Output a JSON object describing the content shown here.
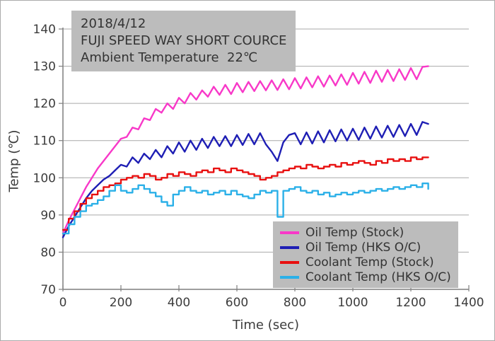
{
  "figure": {
    "background": "#FFFFFF",
    "border_color": "#ABABAB",
    "grid_color": "#A9A9A9",
    "axis_color": "#7F7F7F",
    "text_color": "#3C3C3C",
    "box_background": "#BCBCBC"
  },
  "annotation_box": {
    "lines": [
      "2018/4/12",
      "FUJI SPEED WAY SHORT COURCE",
      "Ambient Temperature  22℃"
    ]
  },
  "chart_data": {
    "type": "line",
    "xlabel": "Time (sec)",
    "ylabel": "Temp (℃)",
    "xlim": [
      0,
      1400
    ],
    "ylim": [
      70,
      140
    ],
    "x_ticks": [
      0,
      200,
      400,
      600,
      800,
      1000,
      1200,
      1400
    ],
    "y_ticks": [
      70,
      80,
      90,
      100,
      110,
      120,
      130,
      140
    ],
    "grid": "horizontal",
    "legend_position": "inside-bottom-right",
    "x_start": 0,
    "x_step": 20,
    "series": [
      {
        "name": "Oil Temp (Stock)",
        "color": "#F838C8",
        "style": "linear",
        "values": [
          85,
          88.5,
          91.5,
          94.5,
          97.5,
          100,
          102.5,
          104.5,
          106.5,
          108.5,
          110.5,
          111,
          113.5,
          113,
          116,
          115.5,
          118.5,
          117.5,
          120,
          118.5,
          121.5,
          120,
          122.8,
          121,
          123.5,
          121.8,
          124.5,
          122.3,
          125,
          122.5,
          125.5,
          123,
          125.8,
          123.3,
          126,
          123.5,
          126.2,
          123.6,
          126.5,
          123.8,
          126.8,
          124,
          127,
          124.3,
          127.3,
          124.5,
          127.5,
          124.8,
          127.8,
          125,
          128.2,
          125.3,
          128.5,
          125.5,
          128.8,
          125.8,
          129,
          126,
          129.2,
          126.3,
          129.5,
          126.5,
          129.8,
          130
        ]
      },
      {
        "name": "Oil Temp (HKS O/C)",
        "color": "#1E1EB4",
        "style": "linear",
        "values": [
          84,
          87,
          89.5,
          92,
          94.5,
          96.5,
          98,
          99.5,
          100.5,
          102,
          103.5,
          103,
          105.5,
          104,
          106.5,
          105,
          107.5,
          105.5,
          108.5,
          106.5,
          109.5,
          107,
          110,
          107.5,
          110.5,
          108,
          111,
          108.5,
          111.2,
          108.5,
          111.5,
          108.8,
          111.8,
          109,
          112,
          109,
          107,
          104.5,
          109.5,
          111.5,
          112,
          109,
          112.2,
          109.2,
          112.5,
          109.5,
          112.8,
          109.8,
          113,
          110,
          113.2,
          110.2,
          113.5,
          110.5,
          113.8,
          110.8,
          114,
          111,
          114.2,
          111.2,
          114.5,
          111.5,
          115,
          114.5
        ]
      },
      {
        "name": "Coolant Temp (Stock)",
        "color": "#E81010",
        "style": "step",
        "values": [
          86,
          89,
          91,
          93,
          94.5,
          95.5,
          96.5,
          97.5,
          98,
          98.5,
          99.5,
          100,
          100.5,
          100,
          101,
          100.5,
          99.5,
          100,
          101,
          100.5,
          101.5,
          101,
          100.5,
          101.5,
          102,
          101.5,
          102.5,
          102,
          101.5,
          102.5,
          102,
          101.5,
          101,
          100.5,
          99.5,
          100,
          100.5,
          101.5,
          102,
          102.5,
          103,
          102.5,
          103.5,
          103,
          102.5,
          103,
          103.5,
          103,
          104,
          103.5,
          104,
          104.5,
          104,
          103.5,
          104.5,
          104,
          105,
          104.5,
          105,
          104.5,
          105.5,
          105,
          105.5,
          105.5
        ]
      },
      {
        "name": "Coolant Temp (HKS O/C)",
        "color": "#2BB0E8",
        "style": "step",
        "values": [
          85,
          87.5,
          89.5,
          91,
          92.5,
          93,
          94,
          95,
          96.5,
          98,
          96.5,
          96,
          97,
          98,
          97,
          96,
          95,
          93.5,
          92.5,
          95.5,
          96.5,
          97.5,
          96.5,
          96,
          96.5,
          95.5,
          96,
          96.5,
          95.5,
          96.5,
          95.5,
          95,
          94.5,
          95.5,
          96.5,
          96,
          96.5,
          89.5,
          96.5,
          97,
          97.5,
          96.5,
          96,
          96.5,
          95.5,
          96,
          95,
          95.5,
          96,
          95.5,
          96,
          96.5,
          96,
          96.5,
          97,
          96.5,
          97,
          97.5,
          97,
          97.5,
          98,
          97.5,
          98.5,
          97
        ]
      }
    ]
  }
}
